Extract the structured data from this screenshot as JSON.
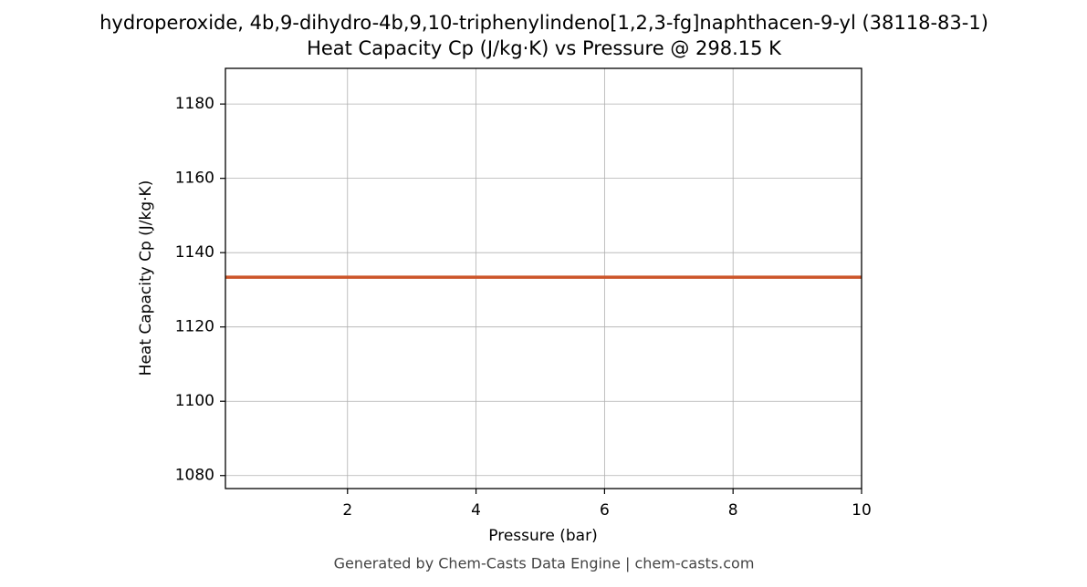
{
  "chart_data": {
    "type": "line",
    "title": "hydroperoxide, 4b,9-dihydro-4b,9,10-triphenylindeno[1,2,3-fg]naphthacen-9-yl (38118-83-1)",
    "subtitle": "Heat Capacity Cp (J/kg·K) vs Pressure @ 298.15 K",
    "x_label": "Pressure (bar)",
    "y_label": "Heat Capacity Cp (J/kg·K)",
    "footer": "Generated by Chem-Casts Data Engine | chem-casts.com",
    "x": [
      0.1,
      10
    ],
    "series": [
      {
        "name": "Cp",
        "color": "#cc5529",
        "values": [
          1133.4,
          1133.4
        ]
      }
    ],
    "xlim": [
      0.1,
      10
    ],
    "ylim": [
      1076.5,
      1189.6
    ],
    "xticks": [
      2,
      4,
      6,
      8,
      10
    ],
    "yticks": [
      1080,
      1100,
      1120,
      1140,
      1160,
      1180
    ],
    "grid": true
  }
}
